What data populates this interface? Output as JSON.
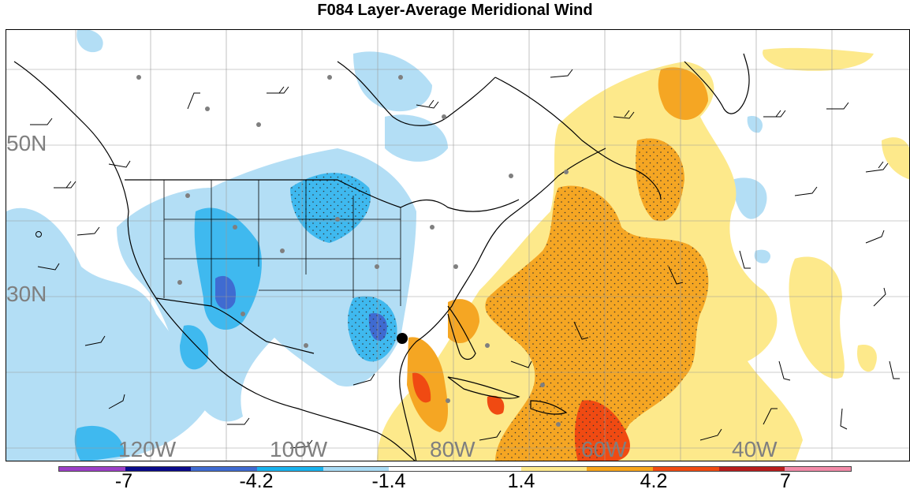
{
  "title": "F084 Layer-Average Meridional Wind",
  "lat_labels": [
    "50N",
    "30N"
  ],
  "lon_labels": [
    "120W",
    "100W",
    "80W",
    "60W",
    "40W"
  ],
  "colorbar": {
    "tick_labels": [
      "-7",
      "-4.2",
      "-1.4",
      "1.4",
      "4.2",
      "7"
    ],
    "colors": [
      "#9c3fc7",
      "#0a0a8a",
      "#3f6bd1",
      "#19b3ee",
      "#a9dbf5",
      "#ffffff",
      "#ffffff",
      "#fde98b",
      "#f7a41a",
      "#f04a12",
      "#b81d1d",
      "#f28aa8"
    ]
  },
  "field_colors": {
    "light_blue": "#b3def5",
    "blue": "#3fb9ef",
    "dark_blue": "#3f6bd1",
    "yellow": "#fde98b",
    "orange": "#f5a623",
    "red_orange": "#f04a12",
    "station_dot": "#7f7f7f",
    "coast": "#000000",
    "grid": "#9a9a9a"
  }
}
